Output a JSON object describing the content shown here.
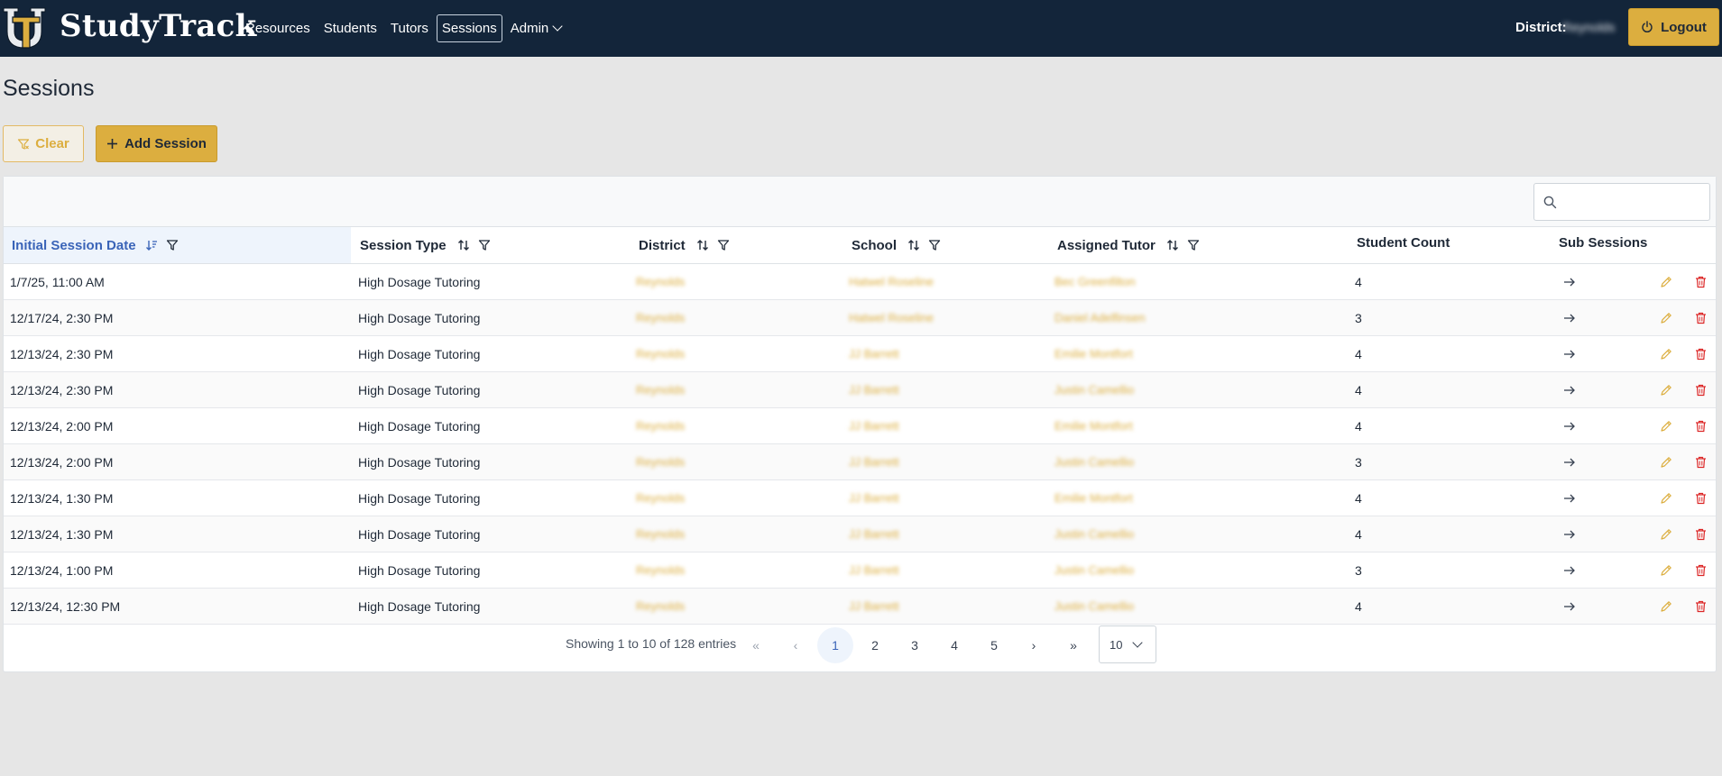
{
  "app": {
    "name": "StudyTrack"
  },
  "nav": {
    "items": [
      {
        "label": "Resources",
        "active": false
      },
      {
        "label": "Students",
        "active": false
      },
      {
        "label": "Tutors",
        "active": false
      },
      {
        "label": "Sessions",
        "active": true
      },
      {
        "label": "Admin",
        "active": false,
        "dropdown": true
      }
    ]
  },
  "header": {
    "district_label": "District:",
    "district_value": "Reynolds",
    "logout_label": "Logout"
  },
  "page": {
    "title": "Sessions"
  },
  "toolbar": {
    "clear_label": "Clear",
    "add_label": "Add Session"
  },
  "search": {
    "placeholder": "",
    "value": ""
  },
  "table": {
    "columns": [
      {
        "label": "Initial Session Date",
        "sortable": true,
        "filterable": true,
        "sorted": true
      },
      {
        "label": "Session Type",
        "sortable": true,
        "filterable": true
      },
      {
        "label": "District",
        "sortable": true,
        "filterable": true
      },
      {
        "label": "School",
        "sortable": true,
        "filterable": true
      },
      {
        "label": "Assigned Tutor",
        "sortable": true,
        "filterable": true
      },
      {
        "label": "Student Count",
        "sortable": false,
        "filterable": false
      },
      {
        "label": "Sub Sessions",
        "sortable": false,
        "filterable": false
      }
    ],
    "rows": [
      {
        "date": "1/7/25, 11:00 AM",
        "type": "High Dosage Tutoring",
        "district": "Reynolds",
        "school": "Hatwel Roseline",
        "tutor": "Bec Greenfilton",
        "count": "4"
      },
      {
        "date": "12/17/24, 2:30 PM",
        "type": "High Dosage Tutoring",
        "district": "Reynolds",
        "school": "Hatwel Roseline",
        "tutor": "Daniel Adelfinsen",
        "count": "3"
      },
      {
        "date": "12/13/24, 2:30 PM",
        "type": "High Dosage Tutoring",
        "district": "Reynolds",
        "school": "JJ Barrett",
        "tutor": "Emilie Montfort",
        "count": "4"
      },
      {
        "date": "12/13/24, 2:30 PM",
        "type": "High Dosage Tutoring",
        "district": "Reynolds",
        "school": "JJ Barrett",
        "tutor": "Justin Camellio",
        "count": "4"
      },
      {
        "date": "12/13/24, 2:00 PM",
        "type": "High Dosage Tutoring",
        "district": "Reynolds",
        "school": "JJ Barrett",
        "tutor": "Emilie Montfort",
        "count": "4"
      },
      {
        "date": "12/13/24, 2:00 PM",
        "type": "High Dosage Tutoring",
        "district": "Reynolds",
        "school": "JJ Barrett",
        "tutor": "Justin Camellio",
        "count": "3"
      },
      {
        "date": "12/13/24, 1:30 PM",
        "type": "High Dosage Tutoring",
        "district": "Reynolds",
        "school": "JJ Barrett",
        "tutor": "Emilie Montfort",
        "count": "4"
      },
      {
        "date": "12/13/24, 1:30 PM",
        "type": "High Dosage Tutoring",
        "district": "Reynolds",
        "school": "JJ Barrett",
        "tutor": "Justin Camellio",
        "count": "4"
      },
      {
        "date": "12/13/24, 1:00 PM",
        "type": "High Dosage Tutoring",
        "district": "Reynolds",
        "school": "JJ Barrett",
        "tutor": "Justin Camellio",
        "count": "3"
      },
      {
        "date": "12/13/24, 12:30 PM",
        "type": "High Dosage Tutoring",
        "district": "Reynolds",
        "school": "JJ Barrett",
        "tutor": "Justin Camellio",
        "count": "4"
      }
    ]
  },
  "pagination": {
    "info": "Showing 1 to 10 of 128 entries",
    "first": "«",
    "prev": "‹",
    "pages": [
      "1",
      "2",
      "3",
      "4",
      "5"
    ],
    "current": "1",
    "next": "›",
    "last": "»",
    "per_page": "10"
  },
  "colors": {
    "accent": "#dcae3f",
    "navbar": "#13253a",
    "sorted_header": "#3a64b8",
    "delete": "#dc2626"
  },
  "icons": {
    "logo": "ut-monogram-icon",
    "sort_desc": "sort-descending-icon",
    "sort": "sort-icon",
    "filter": "filter-icon",
    "arrow": "arrow-right-icon",
    "edit": "pencil-icon",
    "delete": "trash-icon",
    "search": "search-icon",
    "logout": "power-icon",
    "plus": "plus-icon",
    "filter_clear": "filter-clear-icon"
  }
}
